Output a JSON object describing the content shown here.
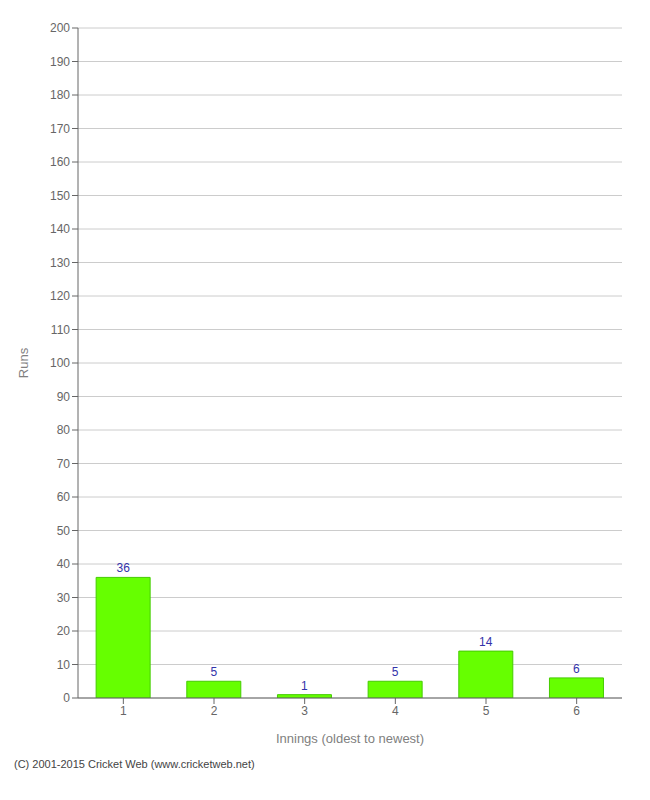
{
  "chart_data": {
    "type": "bar",
    "categories": [
      "1",
      "2",
      "3",
      "4",
      "5",
      "6"
    ],
    "values": [
      36,
      5,
      1,
      5,
      14,
      6
    ],
    "color": "#66ff00",
    "xlabel": "Innings (oldest to newest)",
    "ylabel": "Runs",
    "ylim": [
      0,
      200
    ],
    "yticks": [
      0,
      10,
      20,
      30,
      40,
      50,
      60,
      70,
      80,
      90,
      100,
      110,
      120,
      130,
      140,
      150,
      160,
      170,
      180,
      190,
      200
    ],
    "grid": true,
    "data_labels": true,
    "annotations": [
      "(C) 2001-2015 Cricket Web (www.cricketweb.net)"
    ]
  }
}
